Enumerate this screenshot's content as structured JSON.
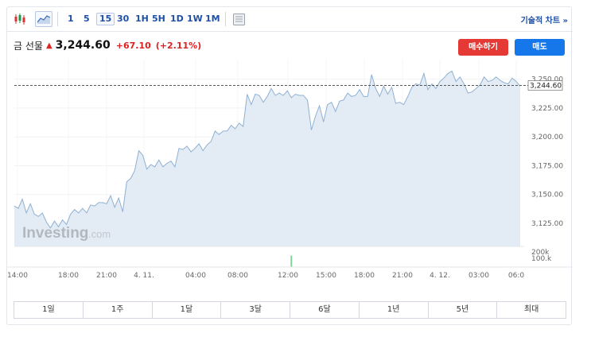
{
  "toolbar": {
    "chart_type_icons": [
      "candlestick-icon",
      "area-chart-icon"
    ],
    "intervals": [
      "1",
      "5",
      "15",
      "30",
      "1H",
      "5H",
      "1D",
      "1W",
      "1M"
    ],
    "active_interval": "15",
    "table_icon": "table-icon",
    "technical_chart_label": "기술적 차트 »"
  },
  "quote": {
    "name": "금 선물",
    "price": "3,244.60",
    "change": "+67.10",
    "change_pct": "(+2.11%)",
    "direction_icon": "up-arrow-icon",
    "up_color": "#dd2222"
  },
  "actions": {
    "buy_label": "매수하기",
    "sell_label": "매도",
    "buy_color": "#e53935",
    "sell_color": "#1577ea"
  },
  "watermark": {
    "brand": "Investing",
    "suffix": ".com"
  },
  "chart_data": {
    "type": "area",
    "x_tick_labels": [
      "14:00",
      "18:00",
      "21:00",
      "4. 11.",
      "04:00",
      "08:00",
      "12:00",
      "15:00",
      "18:00",
      "21:00",
      "4. 12.",
      "03:00",
      "06:0"
    ],
    "ylim": [
      3105,
      3267
    ],
    "y_ticks": [
      3125,
      3150,
      3175,
      3200,
      3225,
      3250
    ],
    "y_tick_labels": [
      "3,125.00",
      "3,150.00",
      "3,175.00",
      "3,200.00",
      "3,225.00",
      "3,250.00"
    ],
    "last_price": 3244.6,
    "last_price_label": "3,244.60",
    "y": [
      3140,
      3138,
      3146,
      3134,
      3142,
      3133,
      3131,
      3134,
      3126,
      3121,
      3127,
      3122,
      3128,
      3124,
      3133,
      3137,
      3134,
      3138,
      3134,
      3141,
      3140,
      3143,
      3143,
      3142,
      3149,
      3139,
      3147,
      3135,
      3161,
      3164,
      3171,
      3188,
      3184,
      3172,
      3176,
      3174,
      3180,
      3174,
      3177,
      3179,
      3174,
      3190,
      3189,
      3192,
      3187,
      3190,
      3194,
      3188,
      3193,
      3196,
      3205,
      3202,
      3205,
      3205,
      3210,
      3207,
      3212,
      3209,
      3237,
      3228,
      3237,
      3236,
      3230,
      3235,
      3242,
      3236,
      3238,
      3236,
      3240,
      3234,
      3237,
      3236,
      3236,
      3232,
      3206,
      3218,
      3227,
      3213,
      3228,
      3230,
      3222,
      3231,
      3232,
      3238,
      3235,
      3236,
      3241,
      3235,
      3235,
      3254,
      3242,
      3235,
      3244,
      3237,
      3243,
      3229,
      3230,
      3228,
      3235,
      3243,
      3246,
      3245,
      3255,
      3241,
      3246,
      3242,
      3248,
      3251,
      3255,
      3257,
      3248,
      3252,
      3246,
      3238,
      3239,
      3242,
      3245,
      3252,
      3248,
      3249,
      3252,
      3249,
      3247,
      3246,
      3251,
      3248,
      3244
    ],
    "volume_axis_labels": [
      "200k",
      "100.k"
    ],
    "volume_bar": {
      "index": 69,
      "value_k": 130
    },
    "line_color": "#8fb0d2",
    "fill_color": "#e3ecf5",
    "volume_color": "#7fd39a"
  },
  "ranges": [
    "1일",
    "1주",
    "1달",
    "3달",
    "6달",
    "1년",
    "5년",
    "최대"
  ]
}
